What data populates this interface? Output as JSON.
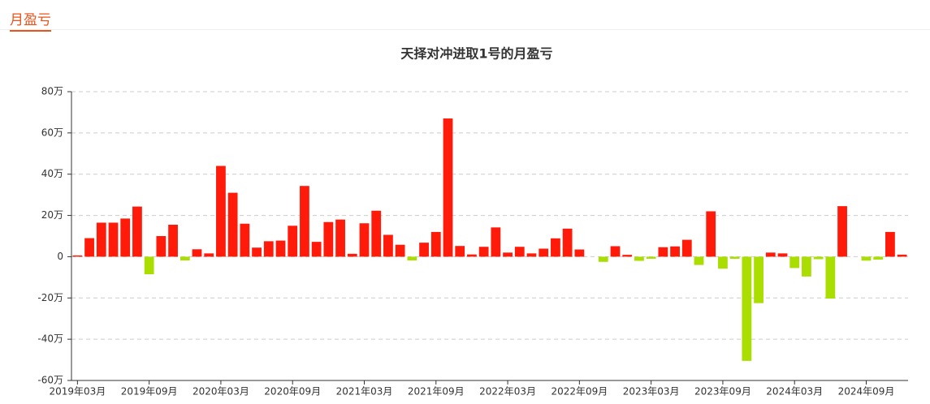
{
  "header": {
    "title": "月盈亏"
  },
  "chart_data": {
    "type": "bar",
    "title": "天择对冲进取1号的月盈亏",
    "categories": [
      "2019年03月",
      null,
      null,
      null,
      null,
      null,
      "2019年09月",
      null,
      null,
      null,
      null,
      null,
      "2020年03月",
      null,
      null,
      null,
      null,
      null,
      "2020年09月",
      null,
      null,
      null,
      null,
      null,
      "2021年03月",
      null,
      null,
      null,
      null,
      null,
      "2021年09月",
      null,
      null,
      null,
      null,
      null,
      "2022年03月",
      null,
      null,
      null,
      null,
      null,
      "2022年09月",
      null,
      null,
      null,
      null,
      null,
      "2023年03月",
      null,
      null,
      null,
      null,
      null,
      "2023年09月",
      null,
      null,
      null,
      null,
      null,
      "2024年03月",
      null,
      null,
      null,
      null,
      null,
      "2024年09月",
      null,
      null,
      null
    ],
    "values": [
      0.6,
      9,
      16.5,
      16.5,
      18.5,
      24.3,
      -8.5,
      10,
      15.5,
      -1.8,
      3.6,
      1.6,
      44,
      31,
      16,
      4.4,
      7.5,
      7.8,
      15,
      34.3,
      7.2,
      16.8,
      18,
      1.4,
      16.2,
      22.3,
      10.6,
      5.8,
      -1.8,
      6.8,
      12,
      67,
      5.2,
      1.1,
      4.8,
      14.2,
      2,
      4.8,
      1.6,
      3.9,
      8.9,
      13.6,
      3.5,
      0,
      -2.5,
      5.1,
      0.9,
      -2,
      -1,
      4.6,
      5,
      8.2,
      -4,
      22,
      -5.8,
      -1,
      -50.5,
      -22.5,
      2,
      1.6,
      -5.5,
      -9.6,
      -1.2,
      -20.3,
      24.5,
      0,
      -1.9,
      -1.4,
      12,
      1
    ],
    "positive_color": "#ff1a0a",
    "negative_color": "#aadd00",
    "ylim": [
      -60,
      80
    ],
    "yticks": [
      {
        "value": -60,
        "label": "-60万"
      },
      {
        "value": -40,
        "label": "-40万"
      },
      {
        "value": -20,
        "label": "-20万"
      },
      {
        "value": 0,
        "label": "0"
      },
      {
        "value": 20,
        "label": "20万"
      },
      {
        "value": 40,
        "label": "40万"
      },
      {
        "value": 60,
        "label": "60万"
      },
      {
        "value": 80,
        "label": "80万"
      }
    ],
    "grid": true
  }
}
